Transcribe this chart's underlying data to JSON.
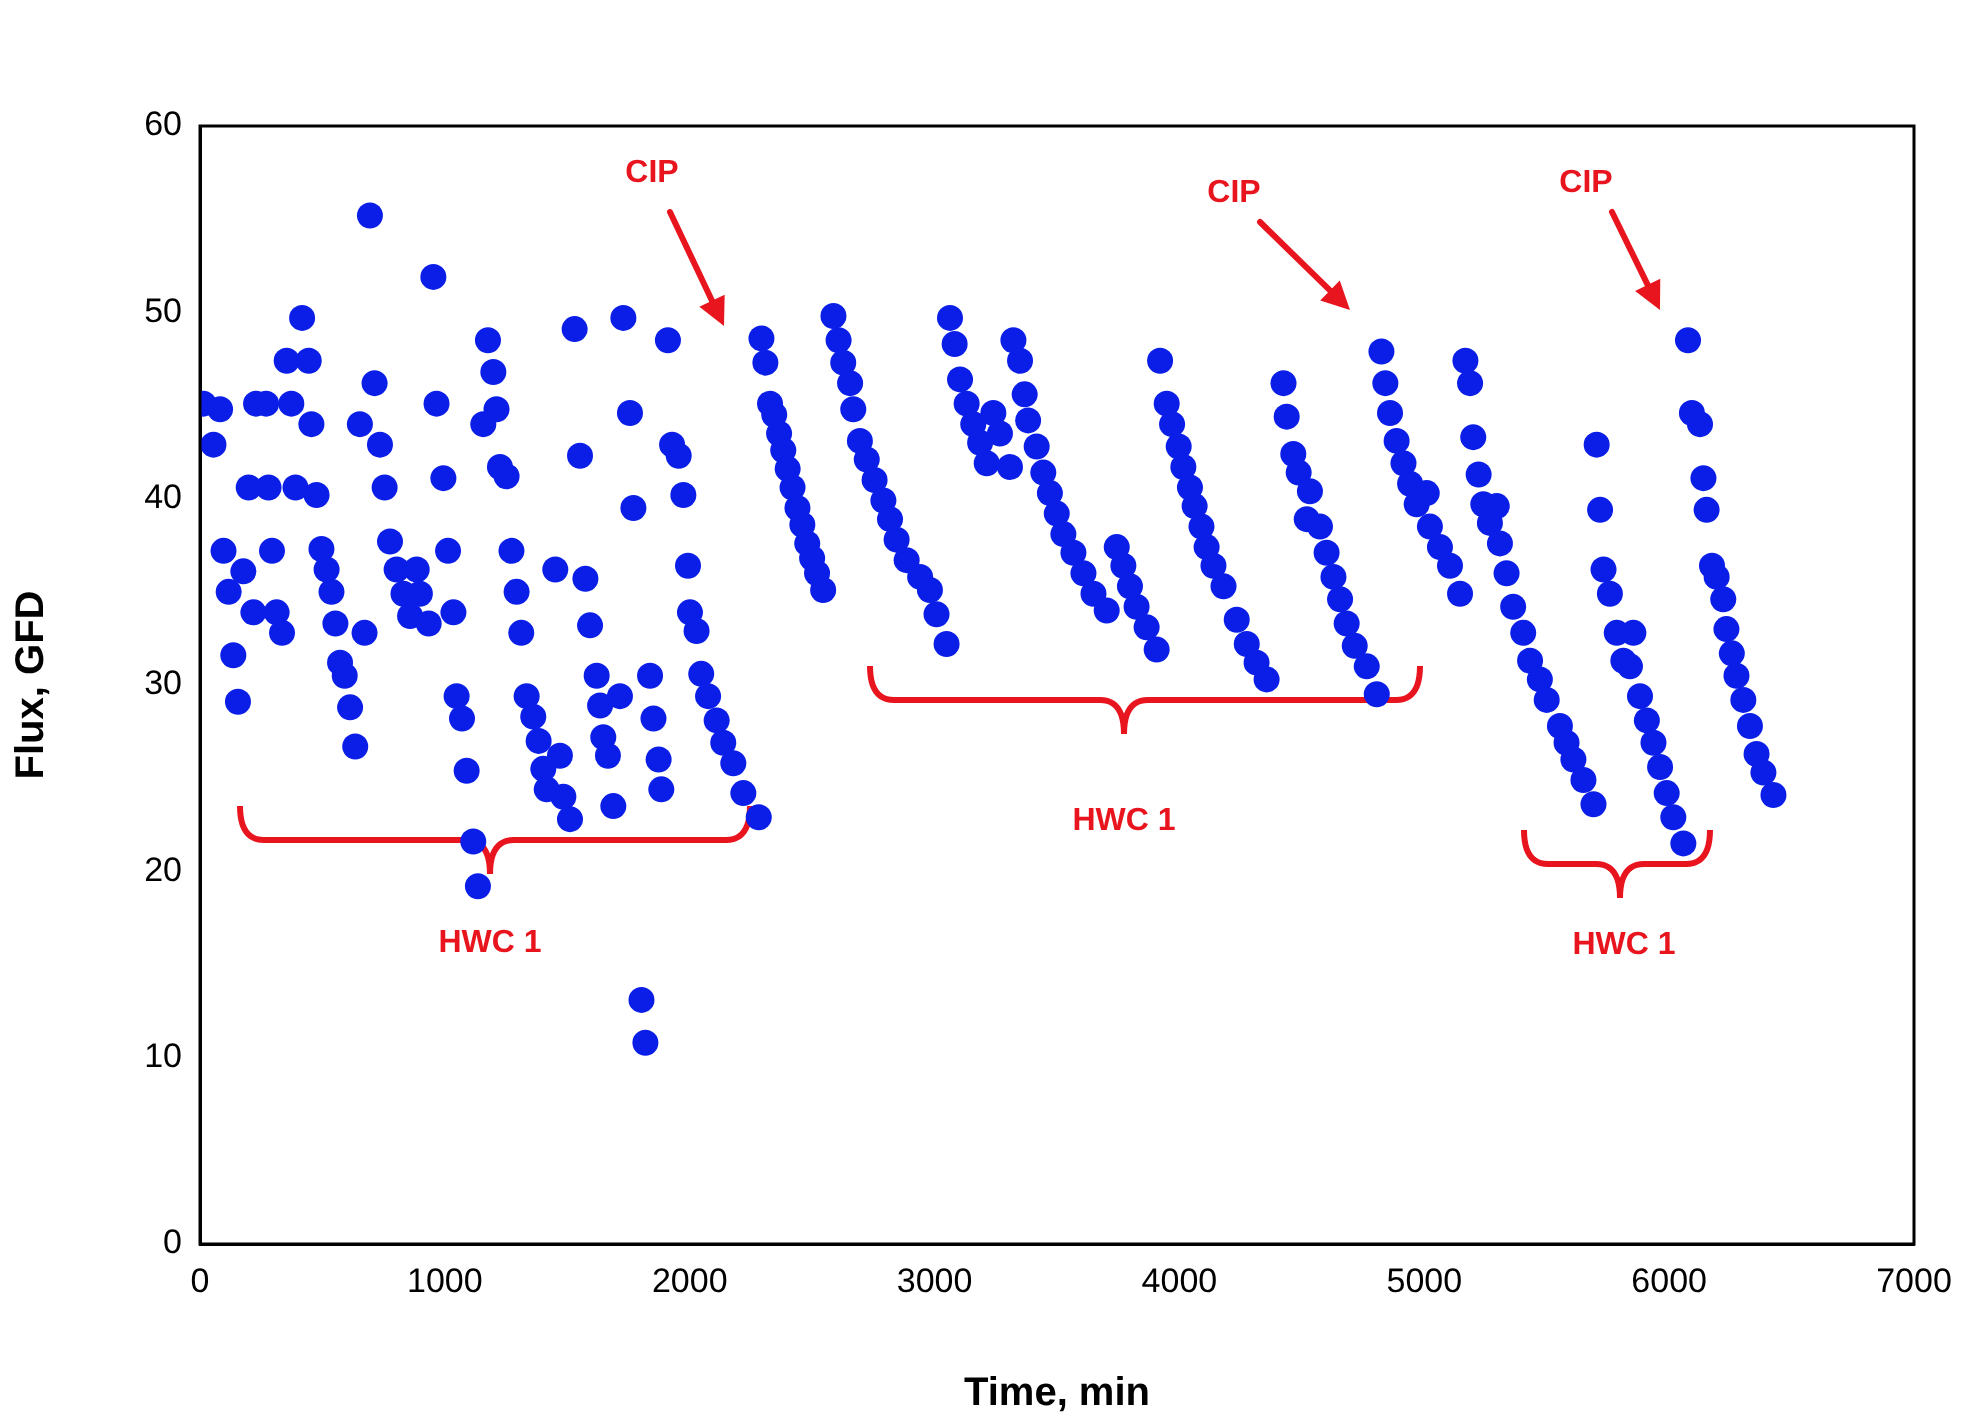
{
  "chart_data": {
    "type": "scatter",
    "xlabel": "Time, min",
    "ylabel": "Flux, GFD",
    "color": "#0a1ee8",
    "marker": "circle",
    "grid": false,
    "legend": false,
    "xlim": [
      0,
      7000
    ],
    "xticks": [
      0,
      1000,
      2000,
      3000,
      4000,
      5000,
      6000,
      7000
    ],
    "ylim": [
      0,
      60
    ],
    "yticks": [
      0,
      10,
      20,
      30,
      40,
      50,
      60
    ],
    "x": [
      14,
      55,
      82,
      96,
      117,
      136,
      155,
      177,
      199,
      218,
      229,
      270,
      280,
      294,
      313,
      335,
      354,
      373,
      390,
      417,
      444,
      455,
      476,
      496,
      517,
      537,
      553,
      572,
      591,
      613,
      634,
      653,
      672,
      694,
      713,
      735,
      754,
      776,
      803,
      831,
      858,
      885,
      898,
      934,
      953,
      966,
      994,
      1013,
      1035,
      1048,
      1070,
      1089,
      1116,
      1135,
      1157,
      1176,
      1198,
      1211,
      1225,
      1252,
      1272,
      1293,
      1312,
      1334,
      1361,
      1383,
      1402,
      1416,
      1451,
      1470,
      1484,
      1511,
      1530,
      1552,
      1574,
      1593,
      1620,
      1634,
      1647,
      1666,
      1688,
      1715,
      1729,
      1756,
      1770,
      1803,
      1819,
      1838,
      1852,
      1873,
      1884,
      1911,
      1928,
      1955,
      1974,
      1993,
      2001,
      2028,
      2047,
      2075,
      2110,
      2137,
      2178,
      2219,
      2282,
      2293,
      2309,
      2328,
      2345,
      2365,
      2382,
      2400,
      2420,
      2440,
      2460,
      2480,
      2500,
      2520,
      2545,
      2587,
      2608,
      2627,
      2655,
      2668,
      2695,
      2723,
      2755,
      2791,
      2818,
      2845,
      2886,
      2941,
      2981,
      3008,
      3049,
      3063,
      3082,
      3104,
      3131,
      3158,
      3186,
      3213,
      3240,
      3267,
      3308,
      3322,
      3349,
      3368,
      3382,
      3417,
      3444,
      3471,
      3499,
      3526,
      3567,
      3608,
      3649,
      3703,
      3744,
      3771,
      3798,
      3825,
      3866,
      3907,
      3921,
      3948,
      3970,
      3997,
      4016,
      4043,
      4062,
      4090,
      4111,
      4139,
      4180,
      4234,
      4275,
      4315,
      4356,
      4425,
      4438,
      4465,
      4487,
      4533,
      4520,
      4574,
      4601,
      4629,
      4656,
      4683,
      4716,
      4765,
      4806,
      4825,
      4841,
      4860,
      4887,
      4915,
      4942,
      4969,
      5010,
      5023,
      5064,
      5105,
      5146,
      5168,
      5187,
      5200,
      5222,
      5241,
      5296,
      5268,
      5309,
      5336,
      5363,
      5404,
      5432,
      5472,
      5500,
      5554,
      5581,
      5609,
      5650,
      5691,
      5704,
      5718,
      5732,
      5758,
      5786,
      5854,
      5813,
      5840,
      5881,
      5909,
      5936,
      5963,
      5990,
      6017,
      6058,
      6077,
      6093,
      6126,
      6140,
      6153,
      6175,
      6194,
      6221,
      6234,
      6256,
      6275,
      6303,
      6330,
      6357,
      6385,
      6426
    ],
    "values": [
      45.1,
      42.9,
      44.8,
      37.2,
      35.0,
      31.6,
      29.1,
      36.1,
      40.6,
      33.9,
      45.1,
      45.1,
      40.6,
      37.2,
      33.9,
      32.8,
      47.4,
      45.1,
      40.6,
      49.7,
      47.4,
      44.0,
      40.2,
      37.3,
      36.2,
      35.0,
      33.3,
      31.2,
      30.5,
      28.8,
      26.7,
      44.0,
      32.8,
      55.2,
      46.2,
      42.9,
      40.6,
      37.7,
      36.2,
      34.9,
      33.7,
      36.2,
      34.9,
      33.3,
      51.9,
      45.1,
      41.1,
      37.2,
      33.9,
      29.4,
      28.2,
      25.4,
      21.6,
      19.2,
      44.0,
      48.5,
      46.8,
      44.8,
      41.7,
      41.2,
      37.2,
      35.0,
      32.8,
      29.4,
      28.3,
      27.0,
      25.5,
      24.4,
      36.2,
      26.2,
      24.0,
      22.8,
      49.1,
      42.3,
      35.7,
      33.2,
      30.5,
      28.9,
      27.2,
      26.2,
      23.5,
      29.4,
      49.7,
      44.6,
      39.5,
      13.1,
      10.8,
      30.5,
      28.2,
      26.0,
      24.4,
      48.5,
      42.9,
      42.3,
      40.2,
      36.4,
      33.9,
      32.9,
      30.6,
      29.4,
      28.1,
      26.9,
      25.8,
      24.2,
      22.9,
      48.6,
      47.3,
      45.1,
      44.5,
      43.5,
      42.6,
      41.6,
      40.6,
      39.5,
      38.6,
      37.6,
      36.8,
      36.0,
      35.1,
      49.8,
      48.5,
      47.3,
      46.2,
      44.8,
      43.1,
      42.1,
      41.0,
      39.9,
      38.9,
      37.8,
      36.7,
      35.8,
      35.1,
      33.8,
      32.2,
      49.7,
      48.3,
      46.4,
      45.1,
      44.0,
      43.0,
      41.9,
      44.6,
      43.5,
      41.7,
      48.5,
      47.4,
      45.6,
      44.2,
      42.8,
      41.4,
      40.3,
      39.2,
      38.1,
      37.1,
      36.0,
      34.9,
      34.0,
      37.4,
      36.4,
      35.3,
      34.2,
      33.1,
      31.9,
      47.4,
      45.1,
      44.0,
      42.8,
      41.7,
      40.6,
      39.6,
      38.5,
      37.4,
      36.4,
      35.3,
      33.5,
      32.2,
      31.2,
      30.3,
      46.2,
      44.4,
      42.4,
      41.4,
      40.4,
      38.9,
      38.5,
      37.1,
      35.8,
      34.6,
      33.3,
      32.1,
      31.0,
      29.5,
      47.9,
      46.2,
      44.6,
      43.1,
      41.9,
      40.8,
      39.7,
      40.3,
      38.5,
      37.4,
      36.4,
      34.9,
      47.4,
      46.2,
      43.3,
      41.3,
      39.7,
      39.6,
      38.7,
      37.6,
      36.0,
      34.2,
      32.8,
      31.3,
      30.3,
      29.2,
      27.8,
      26.9,
      26.0,
      24.9,
      23.6,
      42.9,
      39.4,
      36.2,
      34.9,
      32.8,
      32.8,
      31.3,
      31.0,
      29.4,
      28.1,
      26.9,
      25.6,
      24.2,
      22.9,
      21.5,
      48.5,
      44.6,
      44.0,
      41.1,
      39.4,
      36.4,
      35.8,
      34.6,
      33.0,
      31.7,
      30.5,
      29.2,
      27.8,
      26.3,
      25.3,
      24.1
    ],
    "annotations": [
      "CIP",
      "CIP",
      "CIP",
      "HWC 1",
      "HWC 1",
      "HWC 1"
    ]
  }
}
